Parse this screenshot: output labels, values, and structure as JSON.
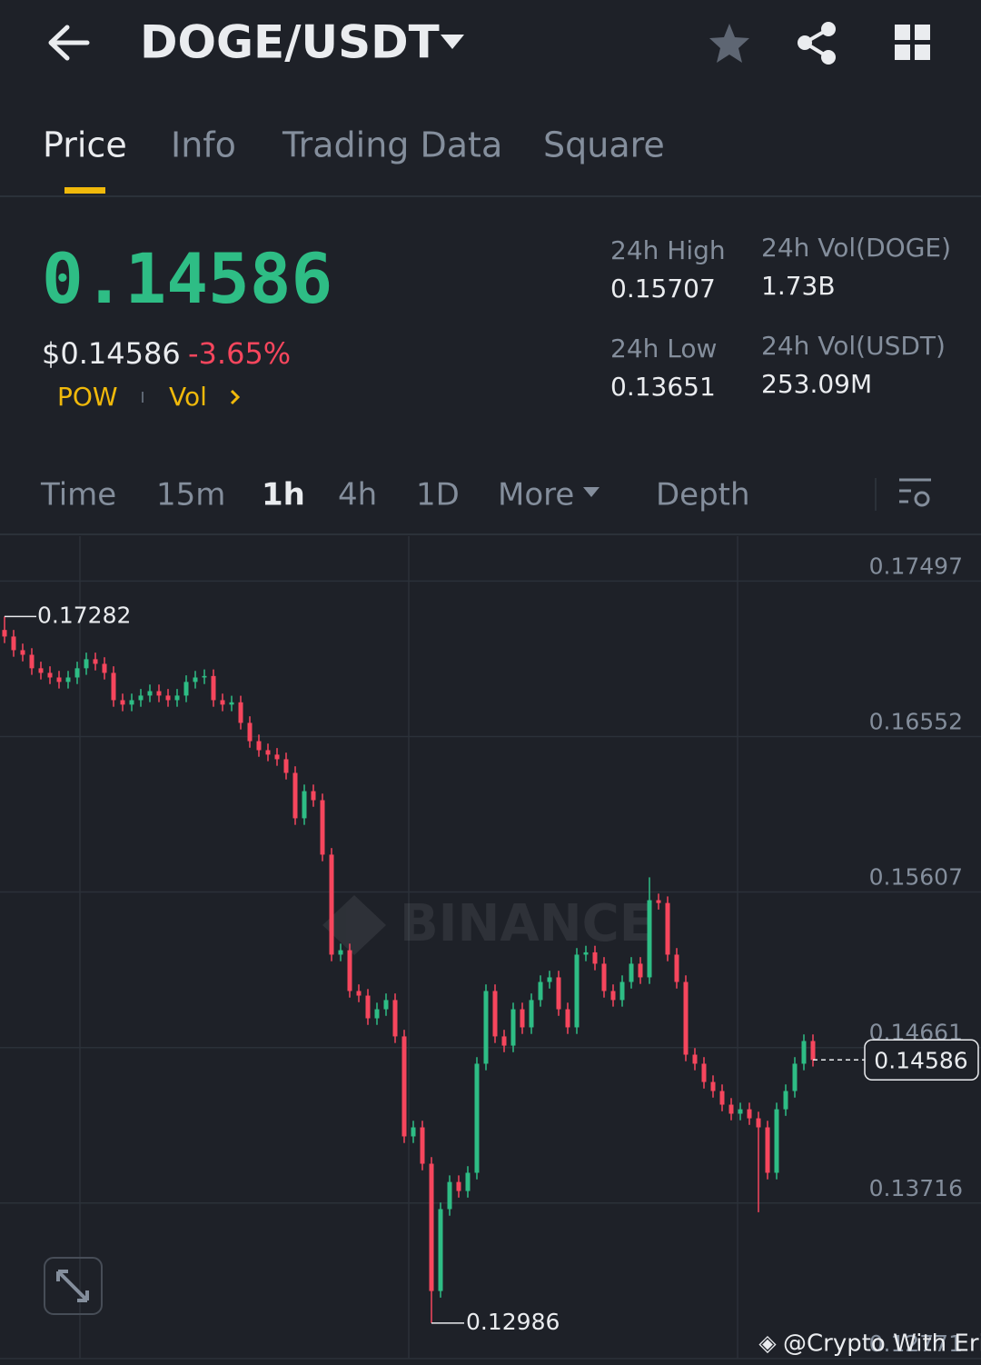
{
  "header": {
    "pair": "DOGE/USDT"
  },
  "tabs": [
    "Price",
    "Info",
    "Trading Data",
    "Square"
  ],
  "ticker": {
    "price": "0.14586",
    "usd_price": "$0.14586",
    "change": "-3.65%",
    "tags": [
      "POW",
      "Vol"
    ]
  },
  "stats": [
    {
      "label": "24h High",
      "value": "0.15707"
    },
    {
      "label": "24h Vol(DOGE)",
      "value": "1.73B"
    },
    {
      "label": "24h Low",
      "value": "0.13651"
    },
    {
      "label": "24h Vol(USDT)",
      "value": "253.09M"
    }
  ],
  "intervals": [
    "Time",
    "15m",
    "1h",
    "4h",
    "1D",
    "More",
    "Depth"
  ],
  "chart_data": {
    "type": "candlestick",
    "up_color": "#2ebd85",
    "down_color": "#f6465d",
    "ylim": [
      0.1277,
      0.1777
    ],
    "yticks": [
      0.17497,
      0.16552,
      0.15607,
      0.14661,
      0.13716,
      0.12771
    ],
    "high_marker": 0.17282,
    "low_marker": 0.12986,
    "last_price": 0.14586,
    "watermark_logo": "BINANCE",
    "open": [
      0.172,
      0.1716,
      0.17077,
      0.17049,
      0.16967,
      0.16939,
      0.16911,
      0.16884,
      0.16911,
      0.16967,
      0.17022,
      0.16994,
      0.16939,
      0.16773,
      0.16746,
      0.16773,
      0.16801,
      0.16828,
      0.16801,
      0.16773,
      0.16801,
      0.16884,
      0.16911,
      0.1692,
      0.16773,
      0.16746,
      0.1676,
      0.16635,
      0.16524,
      0.16469,
      0.16442,
      0.16414,
      0.16331,
      0.16055,
      0.1622,
      0.16165,
      0.15834,
      0.15226,
      0.15253,
      0.15005,
      0.14977,
      0.14839,
      0.14894,
      0.1495,
      0.14729,
      0.14121,
      0.14176,
      0.13955,
      0.13181,
      0.13679,
      0.13844,
      0.13789,
      0.139,
      0.14563,
      0.15005,
      0.14729,
      0.14673,
      0.14894,
      0.14784,
      0.1495,
      0.1506,
      0.15088,
      0.14894,
      0.14784,
      0.15226,
      0.1524,
      0.15171,
      0.15005,
      0.1495,
      0.1506,
      0.15171,
      0.15088,
      0.15557,
      0.1554,
      0.15226,
      0.1506,
      0.14618,
      0.14563,
      0.14452,
      0.14397,
      0.14314,
      0.14259,
      0.14286,
      0.14231,
      0.14176,
      0.139,
      0.14286,
      0.14397,
      0.14563,
      0.14701
    ],
    "high": [
      0.17282,
      0.172,
      0.17117,
      0.17089,
      0.17007,
      0.16979,
      0.16951,
      0.16951,
      0.17007,
      0.17062,
      0.17062,
      0.17034,
      0.16979,
      0.16813,
      0.16813,
      0.16841,
      0.16868,
      0.16868,
      0.16841,
      0.16841,
      0.16924,
      0.16951,
      0.1696,
      0.1696,
      0.16813,
      0.168,
      0.168,
      0.16675,
      0.16564,
      0.16509,
      0.16482,
      0.16454,
      0.16371,
      0.1626,
      0.1626,
      0.16205,
      0.15874,
      0.15293,
      0.15293,
      0.15045,
      0.15017,
      0.14934,
      0.1499,
      0.1499,
      0.14769,
      0.14216,
      0.14216,
      0.13995,
      0.13719,
      0.13884,
      0.13884,
      0.1394,
      0.14603,
      0.15045,
      0.15045,
      0.14769,
      0.14934,
      0.14934,
      0.1499,
      0.151,
      0.15128,
      0.15128,
      0.14934,
      0.15266,
      0.1528,
      0.1528,
      0.15211,
      0.15045,
      0.151,
      0.15211,
      0.15211,
      0.15696,
      0.15597,
      0.1558,
      0.15266,
      0.151,
      0.14658,
      0.14603,
      0.14492,
      0.14437,
      0.14354,
      0.14326,
      0.14326,
      0.14271,
      0.14216,
      0.14326,
      0.14437,
      0.14603,
      0.14741,
      0.14741
    ],
    "low": [
      0.1712,
      0.17037,
      0.17009,
      0.16927,
      0.16899,
      0.16871,
      0.16844,
      0.16844,
      0.16871,
      0.16927,
      0.16954,
      0.16899,
      0.16733,
      0.16706,
      0.16706,
      0.16733,
      0.16761,
      0.16761,
      0.16733,
      0.16733,
      0.16761,
      0.16844,
      0.16871,
      0.16733,
      0.16706,
      0.16706,
      0.16595,
      0.16484,
      0.16429,
      0.16402,
      0.16374,
      0.16291,
      0.16015,
      0.16015,
      0.16125,
      0.15794,
      0.15186,
      0.15186,
      0.14965,
      0.14937,
      0.14799,
      0.14799,
      0.14854,
      0.14689,
      0.14081,
      0.14081,
      0.13915,
      0.12986,
      0.13141,
      0.13639,
      0.13749,
      0.13749,
      0.1386,
      0.14523,
      0.14689,
      0.14633,
      0.14633,
      0.14744,
      0.14744,
      0.1491,
      0.1502,
      0.14854,
      0.14744,
      0.14744,
      0.15186,
      0.15131,
      0.14965,
      0.1491,
      0.1491,
      0.1502,
      0.15048,
      0.15048,
      0.155,
      0.15186,
      0.1502,
      0.14578,
      0.14523,
      0.14412,
      0.14357,
      0.14274,
      0.14219,
      0.14219,
      0.14191,
      0.1366,
      0.1386,
      0.1386,
      0.14246,
      0.14357,
      0.14523,
      0.14546
    ],
    "close": [
      0.1716,
      0.17077,
      0.17049,
      0.16967,
      0.16939,
      0.16911,
      0.16884,
      0.16911,
      0.16967,
      0.17022,
      0.16994,
      0.16939,
      0.16773,
      0.16746,
      0.16773,
      0.16801,
      0.16828,
      0.16801,
      0.16773,
      0.16801,
      0.16884,
      0.16911,
      0.1692,
      0.16773,
      0.16746,
      0.1676,
      0.16635,
      0.16524,
      0.16469,
      0.16442,
      0.16414,
      0.16331,
      0.16055,
      0.1622,
      0.16165,
      0.15834,
      0.15226,
      0.15253,
      0.15005,
      0.14977,
      0.14839,
      0.14894,
      0.1495,
      0.14729,
      0.14121,
      0.14176,
      0.13955,
      0.13181,
      0.13679,
      0.13844,
      0.13789,
      0.139,
      0.14563,
      0.15005,
      0.14729,
      0.14673,
      0.14894,
      0.14784,
      0.1495,
      0.1506,
      0.15088,
      0.14894,
      0.14784,
      0.15226,
      0.1524,
      0.15171,
      0.15005,
      0.1495,
      0.1506,
      0.15171,
      0.15088,
      0.15557,
      0.1554,
      0.15226,
      0.1506,
      0.14618,
      0.14563,
      0.14452,
      0.14397,
      0.14314,
      0.14259,
      0.14286,
      0.14231,
      0.14176,
      0.139,
      0.14286,
      0.14397,
      0.14563,
      0.14701,
      0.14586
    ]
  },
  "watermark": "@Crypto With Erik"
}
